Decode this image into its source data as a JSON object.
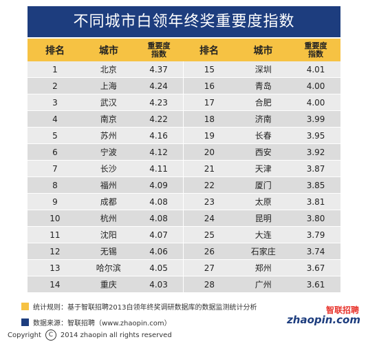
{
  "title": "不同城市白领年终奖重要度指数",
  "headers": [
    "排名",
    "城市",
    "重要度\n指数",
    "排名",
    "城市",
    "重要度\n指数"
  ],
  "rows": [
    [
      "1",
      "北京",
      "4.37",
      "15",
      "深圳",
      "4.01"
    ],
    [
      "2",
      "上海",
      "4.24",
      "16",
      "青岛",
      "4.00"
    ],
    [
      "3",
      "武汉",
      "4.23",
      "17",
      "合肥",
      "4.00"
    ],
    [
      "4",
      "南京",
      "4.22",
      "18",
      "济南",
      "3.99"
    ],
    [
      "5",
      "苏州",
      "4.16",
      "19",
      "长春",
      "3.95"
    ],
    [
      "6",
      "宁波",
      "4.12",
      "20",
      "西安",
      "3.92"
    ],
    [
      "7",
      "长沙",
      "4.11",
      "21",
      "天津",
      "3.87"
    ],
    [
      "8",
      "福州",
      "4.09",
      "22",
      "厦门",
      "3.85"
    ],
    [
      "9",
      "成都",
      "4.08",
      "23",
      "太原",
      "3.81"
    ],
    [
      "10",
      "杭州",
      "4.08",
      "24",
      "昆明",
      "3.80"
    ],
    [
      "11",
      "沈阳",
      "4.07",
      "25",
      "大连",
      "3.79"
    ],
    [
      "12",
      "无锡",
      "4.06",
      "26",
      "石家庄",
      "3.74"
    ],
    [
      "13",
      "哈尔滨",
      "4.05",
      "27",
      "郑州",
      "3.67"
    ],
    [
      "14",
      "重庆",
      "4.03",
      "28",
      "广州",
      "3.61"
    ]
  ],
  "notes": [
    {
      "color": "#f6c243",
      "text": "统计规则：基于智联招聘2013白领年终奖调研数据库的数据监测统计分析"
    },
    {
      "color": "#1d3d7e",
      "text": "数据来源：智联招聘（www.zhaopin.com）"
    }
  ],
  "logo": {
    "cn": "智联招聘",
    "en": "zhaopin.com"
  },
  "copyright": {
    "label": "Copyright",
    "symbol": "C",
    "text": "2014 zhaopin all rights  reserved"
  },
  "colors": {
    "title_bg": "#1d3d7e",
    "header_bg": "#f6c243",
    "logo_red": "#e8342c"
  }
}
